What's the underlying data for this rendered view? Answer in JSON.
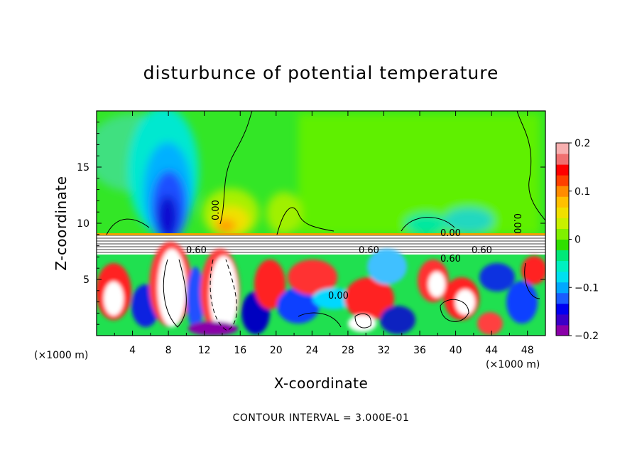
{
  "chart_data": {
    "type": "heatmap",
    "title": "disturbunce of potential temperature",
    "xlabel": "X-coordinate",
    "ylabel": "Z-coordinate",
    "x_unit_label_left": "(×1000 m)",
    "x_unit_label_right": "(×1000 m)",
    "xlim": [
      0,
      50
    ],
    "ylim": [
      0,
      20
    ],
    "x_ticks": [
      4,
      8,
      12,
      16,
      20,
      24,
      28,
      32,
      36,
      40,
      44,
      48
    ],
    "x_tick_labels": [
      "4",
      "8",
      "12",
      "16",
      "20",
      "24",
      "28",
      "32",
      "36",
      "40",
      "44",
      "48"
    ],
    "y_ticks": [
      5,
      10,
      15
    ],
    "y_tick_labels": [
      "5",
      "10",
      "15"
    ],
    "colorbar": {
      "range": [
        -0.2,
        0.2
      ],
      "ticks": [
        0.2,
        0.1,
        0,
        -0.1,
        -0.2
      ],
      "tick_labels": [
        "0.2",
        "0.1",
        "0",
        "−0.1",
        "−0.2"
      ],
      "colors": [
        "#8a00a8",
        "#3a00c8",
        "#0000f0",
        "#1a5cff",
        "#00a8ff",
        "#00e0f0",
        "#00f0c0",
        "#00e878",
        "#30e000",
        "#80f000",
        "#c8f000",
        "#f0e000",
        "#ffc000",
        "#ff8c00",
        "#ff4000",
        "#ff0000",
        "#f07070",
        "#f8b0b0"
      ]
    },
    "contour_labels": [
      "0.00",
      "0.60",
      "0.60",
      "0.60",
      "0.60",
      "0.00",
      "0.00",
      "0.00"
    ],
    "footer": "CONTOUR INTERVAL = 3.000E-01"
  }
}
